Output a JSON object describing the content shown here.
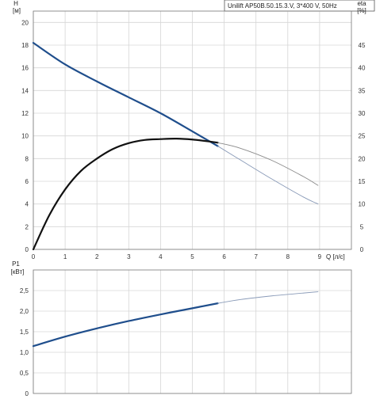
{
  "chart_data": [
    {
      "type": "line",
      "title": "Unilift AP50B.50.15.3.V, 3*400 V, 50Hz",
      "xlabel": "Q [л/с]",
      "ylabel_left": "H",
      "ylabel_left_unit": "[м]",
      "ylabel_right": "eta",
      "ylabel_right_unit": "[%]",
      "xlim": [
        0,
        10
      ],
      "ylim_left": [
        0,
        21
      ],
      "ylim_right": [
        0,
        52.5
      ],
      "x_ticks": [
        "0",
        "1",
        "2",
        "3",
        "4",
        "5",
        "6",
        "7",
        "8",
        "9"
      ],
      "y_left_ticks": [
        "0",
        "2",
        "4",
        "6",
        "8",
        "10",
        "12",
        "14",
        "16",
        "18",
        "20"
      ],
      "y_right_ticks": [
        "0",
        "5",
        "10",
        "15",
        "20",
        "25",
        "30",
        "35",
        "40",
        "45"
      ],
      "grid": true,
      "series": [
        {
          "axis": "left",
          "color": "#1f4e8c",
          "style": "solid-thick",
          "x": [
            0,
            1,
            2,
            3,
            4,
            5,
            5.8
          ],
          "y": [
            18.2,
            16.3,
            14.8,
            13.4,
            12.0,
            10.4,
            9.1
          ]
        },
        {
          "axis": "left",
          "color": "#8a9bb8",
          "style": "solid-thin",
          "x": [
            5.8,
            6.5,
            7.5,
            8.5,
            8.95
          ],
          "y": [
            9.1,
            7.9,
            6.2,
            4.6,
            4.0
          ]
        },
        {
          "axis": "right",
          "color": "#111111",
          "style": "solid-thick",
          "x": [
            0,
            0.5,
            1,
            1.5,
            2,
            2.5,
            3,
            3.5,
            4,
            4.5,
            5,
            5.5,
            5.8
          ],
          "y": [
            0,
            7.5,
            13.2,
            17.3,
            20.0,
            22.1,
            23.4,
            24.1,
            24.3,
            24.4,
            24.2,
            23.8,
            23.5
          ]
        },
        {
          "axis": "right",
          "color": "#8a8a8a",
          "style": "solid-thin",
          "x": [
            5.8,
            6.5,
            7.5,
            8.5,
            8.95
          ],
          "y": [
            23.5,
            22.3,
            19.6,
            16.0,
            14.1
          ]
        }
      ]
    },
    {
      "type": "line",
      "ylabel": "P1",
      "ylabel_unit": "[кВт]",
      "xlim": [
        0,
        10
      ],
      "ylim": [
        0,
        3.0
      ],
      "y_ticks": [
        "0",
        "0,5",
        "1,0",
        "1,5",
        "2,0",
        "2,5"
      ],
      "grid": true,
      "series": [
        {
          "color": "#1f4e8c",
          "style": "solid-thick",
          "x": [
            0,
            1,
            2,
            3,
            4,
            5,
            5.8
          ],
          "y": [
            1.15,
            1.38,
            1.58,
            1.76,
            1.92,
            2.07,
            2.19
          ]
        },
        {
          "color": "#8a9bb8",
          "style": "solid-thin",
          "x": [
            5.8,
            6.5,
            7.5,
            8.5,
            8.95
          ],
          "y": [
            2.19,
            2.28,
            2.37,
            2.44,
            2.47
          ]
        }
      ]
    }
  ]
}
